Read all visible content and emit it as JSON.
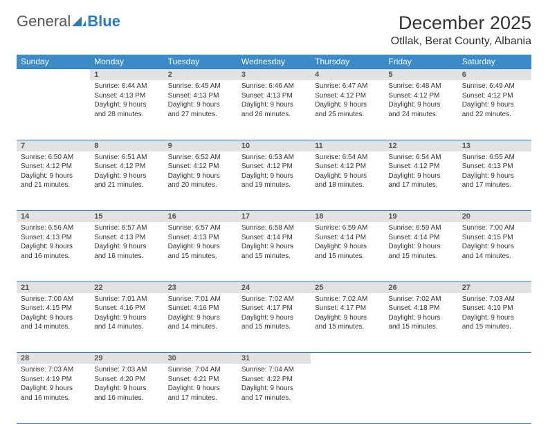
{
  "logo": {
    "text1": "General",
    "text2": "Blue"
  },
  "title": "December 2025",
  "location": "Otllak, Berat County, Albania",
  "colors": {
    "header_bg": "#3b8bc8",
    "header_text": "#ffffff",
    "daynum_bg": "#e2e2e2",
    "daynum_text": "#555555",
    "border": "#2a7abf",
    "body_text": "#333333"
  },
  "fonts": {
    "title_size_pt": 20,
    "location_size_pt": 12,
    "dayhead_size_pt": 9,
    "cell_size_pt": 7.5
  },
  "day_headers": [
    "Sunday",
    "Monday",
    "Tuesday",
    "Wednesday",
    "Thursday",
    "Friday",
    "Saturday"
  ],
  "weeks": [
    [
      {
        "num": "",
        "lines": []
      },
      {
        "num": "1",
        "lines": [
          "Sunrise: 6:44 AM",
          "Sunset: 4:13 PM",
          "Daylight: 9 hours and 28 minutes."
        ]
      },
      {
        "num": "2",
        "lines": [
          "Sunrise: 6:45 AM",
          "Sunset: 4:13 PM",
          "Daylight: 9 hours and 27 minutes."
        ]
      },
      {
        "num": "3",
        "lines": [
          "Sunrise: 6:46 AM",
          "Sunset: 4:13 PM",
          "Daylight: 9 hours and 26 minutes."
        ]
      },
      {
        "num": "4",
        "lines": [
          "Sunrise: 6:47 AM",
          "Sunset: 4:12 PM",
          "Daylight: 9 hours and 25 minutes."
        ]
      },
      {
        "num": "5",
        "lines": [
          "Sunrise: 6:48 AM",
          "Sunset: 4:12 PM",
          "Daylight: 9 hours and 24 minutes."
        ]
      },
      {
        "num": "6",
        "lines": [
          "Sunrise: 6:49 AM",
          "Sunset: 4:12 PM",
          "Daylight: 9 hours and 22 minutes."
        ]
      }
    ],
    [
      {
        "num": "7",
        "lines": [
          "Sunrise: 6:50 AM",
          "Sunset: 4:12 PM",
          "Daylight: 9 hours and 21 minutes."
        ]
      },
      {
        "num": "8",
        "lines": [
          "Sunrise: 6:51 AM",
          "Sunset: 4:12 PM",
          "Daylight: 9 hours and 21 minutes."
        ]
      },
      {
        "num": "9",
        "lines": [
          "Sunrise: 6:52 AM",
          "Sunset: 4:12 PM",
          "Daylight: 9 hours and 20 minutes."
        ]
      },
      {
        "num": "10",
        "lines": [
          "Sunrise: 6:53 AM",
          "Sunset: 4:12 PM",
          "Daylight: 9 hours and 19 minutes."
        ]
      },
      {
        "num": "11",
        "lines": [
          "Sunrise: 6:54 AM",
          "Sunset: 4:12 PM",
          "Daylight: 9 hours and 18 minutes."
        ]
      },
      {
        "num": "12",
        "lines": [
          "Sunrise: 6:54 AM",
          "Sunset: 4:12 PM",
          "Daylight: 9 hours and 17 minutes."
        ]
      },
      {
        "num": "13",
        "lines": [
          "Sunrise: 6:55 AM",
          "Sunset: 4:13 PM",
          "Daylight: 9 hours and 17 minutes."
        ]
      }
    ],
    [
      {
        "num": "14",
        "lines": [
          "Sunrise: 6:56 AM",
          "Sunset: 4:13 PM",
          "Daylight: 9 hours and 16 minutes."
        ]
      },
      {
        "num": "15",
        "lines": [
          "Sunrise: 6:57 AM",
          "Sunset: 4:13 PM",
          "Daylight: 9 hours and 16 minutes."
        ]
      },
      {
        "num": "16",
        "lines": [
          "Sunrise: 6:57 AM",
          "Sunset: 4:13 PM",
          "Daylight: 9 hours and 15 minutes."
        ]
      },
      {
        "num": "17",
        "lines": [
          "Sunrise: 6:58 AM",
          "Sunset: 4:14 PM",
          "Daylight: 9 hours and 15 minutes."
        ]
      },
      {
        "num": "18",
        "lines": [
          "Sunrise: 6:59 AM",
          "Sunset: 4:14 PM",
          "Daylight: 9 hours and 15 minutes."
        ]
      },
      {
        "num": "19",
        "lines": [
          "Sunrise: 6:59 AM",
          "Sunset: 4:14 PM",
          "Daylight: 9 hours and 15 minutes."
        ]
      },
      {
        "num": "20",
        "lines": [
          "Sunrise: 7:00 AM",
          "Sunset: 4:15 PM",
          "Daylight: 9 hours and 14 minutes."
        ]
      }
    ],
    [
      {
        "num": "21",
        "lines": [
          "Sunrise: 7:00 AM",
          "Sunset: 4:15 PM",
          "Daylight: 9 hours and 14 minutes."
        ]
      },
      {
        "num": "22",
        "lines": [
          "Sunrise: 7:01 AM",
          "Sunset: 4:16 PM",
          "Daylight: 9 hours and 14 minutes."
        ]
      },
      {
        "num": "23",
        "lines": [
          "Sunrise: 7:01 AM",
          "Sunset: 4:16 PM",
          "Daylight: 9 hours and 14 minutes."
        ]
      },
      {
        "num": "24",
        "lines": [
          "Sunrise: 7:02 AM",
          "Sunset: 4:17 PM",
          "Daylight: 9 hours and 15 minutes."
        ]
      },
      {
        "num": "25",
        "lines": [
          "Sunrise: 7:02 AM",
          "Sunset: 4:17 PM",
          "Daylight: 9 hours and 15 minutes."
        ]
      },
      {
        "num": "26",
        "lines": [
          "Sunrise: 7:02 AM",
          "Sunset: 4:18 PM",
          "Daylight: 9 hours and 15 minutes."
        ]
      },
      {
        "num": "27",
        "lines": [
          "Sunrise: 7:03 AM",
          "Sunset: 4:19 PM",
          "Daylight: 9 hours and 15 minutes."
        ]
      }
    ],
    [
      {
        "num": "28",
        "lines": [
          "Sunrise: 7:03 AM",
          "Sunset: 4:19 PM",
          "Daylight: 9 hours and 16 minutes."
        ]
      },
      {
        "num": "29",
        "lines": [
          "Sunrise: 7:03 AM",
          "Sunset: 4:20 PM",
          "Daylight: 9 hours and 16 minutes."
        ]
      },
      {
        "num": "30",
        "lines": [
          "Sunrise: 7:04 AM",
          "Sunset: 4:21 PM",
          "Daylight: 9 hours and 17 minutes."
        ]
      },
      {
        "num": "31",
        "lines": [
          "Sunrise: 7:04 AM",
          "Sunset: 4:22 PM",
          "Daylight: 9 hours and 17 minutes."
        ]
      },
      {
        "num": "",
        "lines": []
      },
      {
        "num": "",
        "lines": []
      },
      {
        "num": "",
        "lines": []
      }
    ]
  ]
}
